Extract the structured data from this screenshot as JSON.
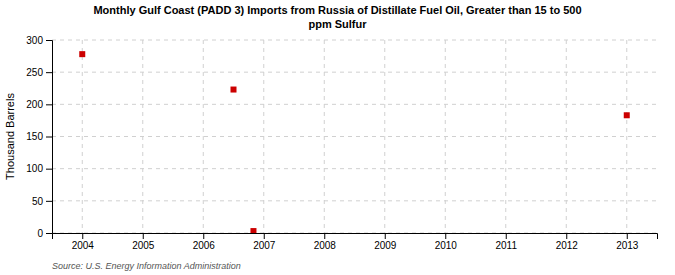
{
  "chart_data": {
    "type": "scatter",
    "title": "Monthly Gulf Coast (PADD 3) Imports from Russia of Distillate Fuel Oil, Greater than 15 to 500\nppm Sulfur",
    "ylabel": "Thousand Barrels",
    "source": "Source: U.S. Energy Information Administration",
    "x": [
      2004.0,
      2006.5,
      2006.83,
      2013.0
    ],
    "y": [
      278,
      223,
      3,
      183
    ],
    "color": "#cc0000",
    "marker": "square",
    "grid": true,
    "xlim": [
      2003.5,
      2013.5
    ],
    "ylim": [
      0,
      300
    ],
    "xticks": [
      2004,
      2005,
      2006,
      2007,
      2008,
      2009,
      2010,
      2011,
      2012,
      2013
    ],
    "yticks": [
      0,
      50,
      100,
      150,
      200,
      250,
      300
    ]
  }
}
